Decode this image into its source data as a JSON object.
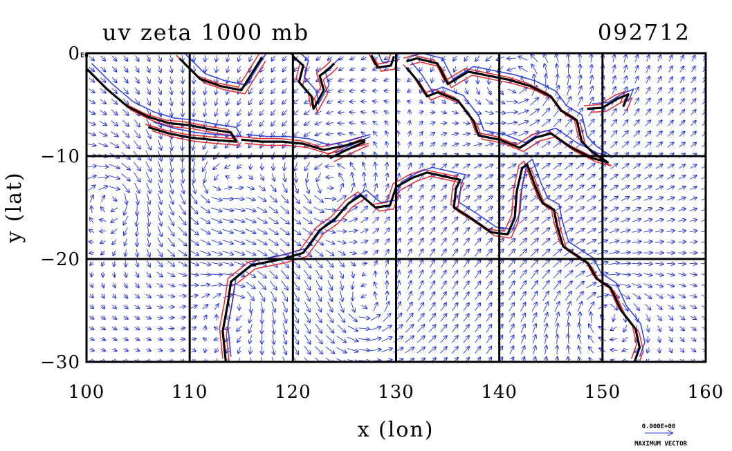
{
  "chart_data": {
    "type": "vector-field map",
    "title": "uv zeta 1000 mb",
    "run_label": "092712",
    "xlabel": "x (lon)",
    "ylabel": "y (lat)",
    "xlim": [
      100,
      160
    ],
    "ylim": [
      -30,
      0
    ],
    "x_ticks": [
      "100",
      "110",
      "120",
      "130",
      "140",
      "150",
      "160"
    ],
    "y_ticks": [
      "0",
      "−10",
      "−20",
      "−30"
    ],
    "y_tick_suffix": "E0",
    "grid": true,
    "vector_legend": {
      "value": "0.000E+00",
      "label": "MAXIMUM VECTOR"
    },
    "colors": {
      "vectors": "#2233dd",
      "positive_contour": "#e21d1d",
      "negative_contour": "#2233dd",
      "coast": "#000000"
    },
    "coastlines": [
      {
        "name": "sumatra_java",
        "points": [
          [
            100,
            -1.5
          ],
          [
            102,
            -3.5
          ],
          [
            104,
            -5.2
          ],
          [
            106,
            -6.2
          ],
          [
            108,
            -6.8
          ],
          [
            110,
            -7.0
          ],
          [
            112,
            -7.4
          ],
          [
            114,
            -7.7
          ],
          [
            114.5,
            -8.6
          ],
          [
            112,
            -8.4
          ],
          [
            110,
            -8.2
          ],
          [
            108,
            -7.8
          ],
          [
            106,
            -7.2
          ]
        ]
      },
      {
        "name": "borneo_south",
        "points": [
          [
            109,
            -0.5
          ],
          [
            111,
            -2.5
          ],
          [
            113,
            -3.2
          ],
          [
            115,
            -3.6
          ],
          [
            116,
            -2.0
          ],
          [
            117,
            -0.4
          ]
        ]
      },
      {
        "name": "sulawesi",
        "points": [
          [
            120,
            -0.3
          ],
          [
            121,
            -1.2
          ],
          [
            120.6,
            -2.8
          ],
          [
            121.8,
            -4.2
          ],
          [
            122,
            -5.4
          ],
          [
            123,
            -3.6
          ],
          [
            122.6,
            -2.2
          ],
          [
            123.4,
            -1.6
          ],
          [
            124,
            -1.0
          ]
        ]
      },
      {
        "name": "lesser_sunda",
        "points": [
          [
            115,
            -8.4
          ],
          [
            117,
            -8.6
          ],
          [
            119,
            -8.6
          ],
          [
            121,
            -8.8
          ],
          [
            123,
            -9.4
          ],
          [
            125,
            -9.0
          ],
          [
            127,
            -8.4
          ]
        ]
      },
      {
        "name": "timor",
        "points": [
          [
            123.6,
            -10.2
          ],
          [
            125,
            -9.5
          ],
          [
            127,
            -8.6
          ]
        ]
      },
      {
        "name": "halmahera",
        "points": [
          [
            127.6,
            -0.2
          ],
          [
            128.2,
            -1.4
          ],
          [
            129.5,
            -1.2
          ],
          [
            129.8,
            -0.3
          ]
        ]
      },
      {
        "name": "new_guinea",
        "points": [
          [
            131,
            -0.8
          ],
          [
            132,
            -0.5
          ],
          [
            134,
            -1.0
          ],
          [
            135,
            -3.0
          ],
          [
            137,
            -1.8
          ],
          [
            139,
            -2.2
          ],
          [
            141,
            -2.6
          ],
          [
            143,
            -3.2
          ],
          [
            145,
            -4.2
          ],
          [
            146,
            -5.6
          ],
          [
            147.5,
            -6.5
          ],
          [
            148,
            -8.6
          ],
          [
            149,
            -9.6
          ],
          [
            150.5,
            -10.6
          ],
          [
            149,
            -10.2
          ],
          [
            147,
            -9.2
          ],
          [
            145,
            -7.8
          ],
          [
            143.5,
            -8.2
          ],
          [
            142,
            -9.2
          ],
          [
            140,
            -8.4
          ],
          [
            138,
            -8.0
          ],
          [
            137.5,
            -6.6
          ],
          [
            136,
            -4.6
          ],
          [
            134,
            -3.8
          ],
          [
            133,
            -4.2
          ],
          [
            132,
            -2.6
          ],
          [
            131,
            -1.4
          ]
        ]
      },
      {
        "name": "new_britain",
        "points": [
          [
            148.5,
            -5.4
          ],
          [
            150,
            -5.3
          ],
          [
            151.5,
            -4.4
          ],
          [
            152.5,
            -4.0
          ],
          [
            152,
            -5.2
          ]
        ]
      },
      {
        "name": "australia",
        "points": [
          [
            113.5,
            -30
          ],
          [
            113.2,
            -27
          ],
          [
            113.7,
            -24.3
          ],
          [
            114,
            -22.2
          ],
          [
            116,
            -20.6
          ],
          [
            119,
            -20
          ],
          [
            121,
            -19.4
          ],
          [
            122.6,
            -17.2
          ],
          [
            124,
            -16.2
          ],
          [
            125.4,
            -14.6
          ],
          [
            126.6,
            -13.8
          ],
          [
            128,
            -15
          ],
          [
            129.4,
            -14.8
          ],
          [
            130,
            -13
          ],
          [
            131.6,
            -12.1
          ],
          [
            133,
            -11.6
          ],
          [
            134.8,
            -12
          ],
          [
            136.2,
            -12.3
          ],
          [
            135.8,
            -13.2
          ],
          [
            135.6,
            -15
          ],
          [
            137.2,
            -16
          ],
          [
            139.2,
            -17.4
          ],
          [
            140.8,
            -17.6
          ],
          [
            141.5,
            -16
          ],
          [
            141.7,
            -13.4
          ],
          [
            142.2,
            -11.2
          ],
          [
            142.7,
            -10.8
          ],
          [
            143.5,
            -13
          ],
          [
            144.2,
            -14.6
          ],
          [
            145.3,
            -15.2
          ],
          [
            145.6,
            -16.8
          ],
          [
            146.2,
            -18.8
          ],
          [
            148.6,
            -20.4
          ],
          [
            149.4,
            -21.9
          ],
          [
            150.8,
            -22.8
          ],
          [
            151.8,
            -25
          ],
          [
            153.2,
            -26.8
          ],
          [
            153.6,
            -28.6
          ],
          [
            153.1,
            -30
          ]
        ]
      }
    ],
    "vortex_centers": [
      {
        "x": 103,
        "y": -14,
        "sign": -1
      },
      {
        "x": 112,
        "y": -13,
        "sign": 1
      },
      {
        "x": 123.5,
        "y": -13,
        "sign": 1
      },
      {
        "x": 115,
        "y": -24,
        "sign": -1
      },
      {
        "x": 127,
        "y": -25,
        "sign": 1
      },
      {
        "x": 150,
        "y": -25,
        "sign": -1
      },
      {
        "x": 142,
        "y": -3,
        "sign": 1
      }
    ]
  }
}
